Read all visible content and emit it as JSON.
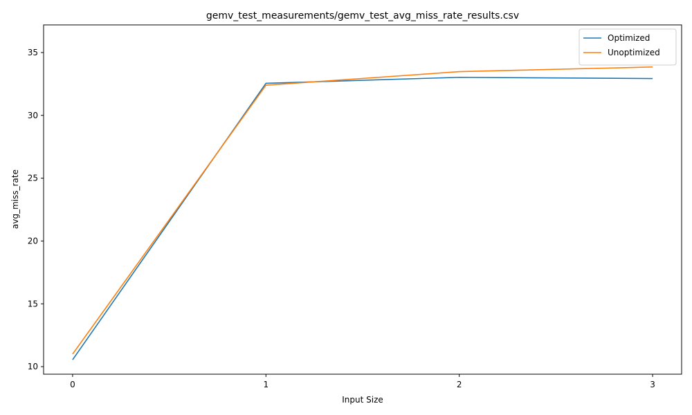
{
  "chart_data": {
    "type": "line",
    "title": "gemv_test_measurements/gemv_test_avg_miss_rate_results.csv",
    "xlabel": "Input Size",
    "ylabel": "avg_miss_rate",
    "x": [
      0,
      1,
      2,
      3
    ],
    "x_ticks": [
      "0",
      "1",
      "2",
      "3"
    ],
    "y_ticks": [
      "10",
      "15",
      "20",
      "25",
      "30",
      "35"
    ],
    "xlim": [
      -0.15,
      3.15
    ],
    "ylim": [
      9.4,
      37.2
    ],
    "grid": false,
    "legend_position": "top-right",
    "series": [
      {
        "name": "Optimized",
        "color": "#1f77b4",
        "values": [
          10.55,
          32.55,
          33.03,
          32.93
        ]
      },
      {
        "name": "Unoptimized",
        "color": "#ff7f0e",
        "values": [
          11.0,
          32.4,
          33.48,
          33.85
        ]
      }
    ]
  }
}
